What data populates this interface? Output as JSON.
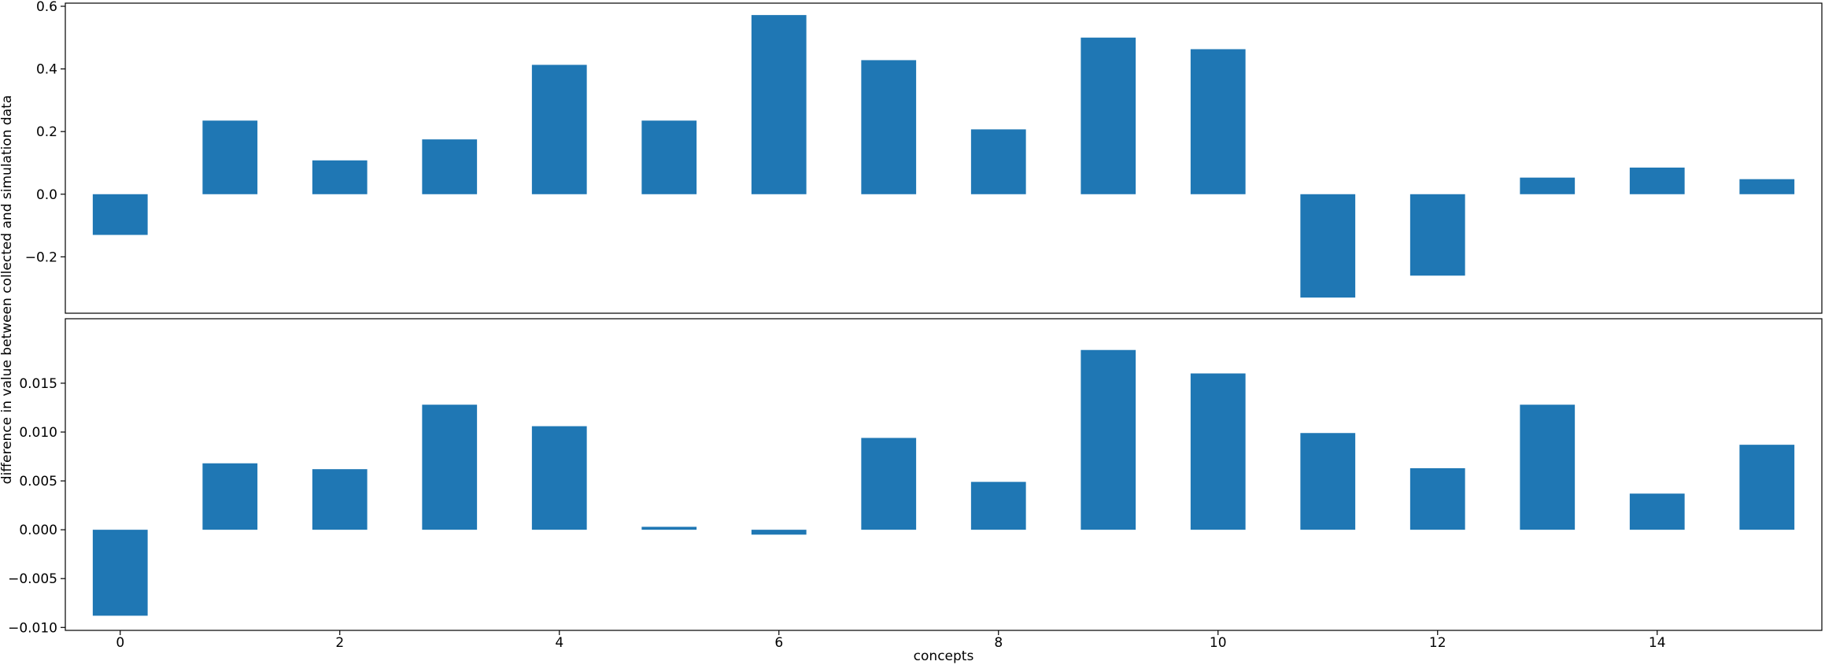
{
  "colors": {
    "bar": "#1f77b4",
    "axis": "#000000",
    "background": "#ffffff"
  },
  "chart_data": [
    {
      "type": "bar",
      "panel": "top",
      "categories": [
        0,
        1,
        2,
        3,
        4,
        5,
        6,
        7,
        8,
        9,
        10,
        11,
        12,
        13,
        14,
        15
      ],
      "values": [
        -0.13,
        0.235,
        0.108,
        0.175,
        0.413,
        0.235,
        0.572,
        0.428,
        0.207,
        0.5,
        0.463,
        -0.33,
        -0.26,
        0.053,
        0.085,
        0.048
      ],
      "ylim": [
        -0.38,
        0.61
      ],
      "yticks": [
        -0.2,
        0.0,
        0.2,
        0.4,
        0.6
      ],
      "ytick_labels": [
        "−0.2",
        "0.0",
        "0.2",
        "0.4",
        "0.6"
      ],
      "grid": false,
      "legend": "none"
    },
    {
      "type": "bar",
      "panel": "bottom",
      "categories": [
        0,
        1,
        2,
        3,
        4,
        5,
        6,
        7,
        8,
        9,
        10,
        11,
        12,
        13,
        14,
        15
      ],
      "values": [
        -0.0088,
        0.0068,
        0.0062,
        0.0128,
        0.0106,
        0.0003,
        -0.0005,
        0.0094,
        0.0049,
        0.0184,
        0.016,
        0.0099,
        0.0063,
        0.0128,
        0.0037,
        0.0087
      ],
      "ylim": [
        -0.0103,
        0.0216
      ],
      "yticks": [
        -0.01,
        -0.005,
        0.0,
        0.005,
        0.01,
        0.015
      ],
      "ytick_labels": [
        "−0.010",
        "−0.005",
        "0.000",
        "0.005",
        "0.010",
        "0.015"
      ],
      "xticks": [
        0,
        2,
        4,
        6,
        8,
        10,
        12,
        14
      ],
      "xtick_labels": [
        "0",
        "2",
        "4",
        "6",
        "8",
        "10",
        "12",
        "14"
      ],
      "xlabel": "concepts",
      "grid": false,
      "legend": "none"
    }
  ],
  "shared": {
    "ylabel": "difference in value between collected and simulation data"
  }
}
